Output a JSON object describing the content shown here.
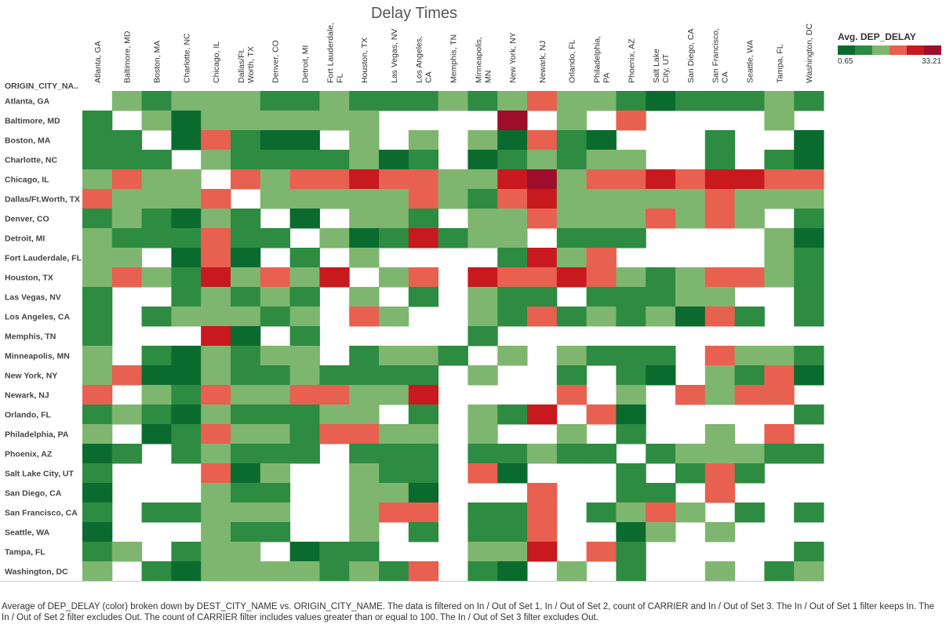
{
  "chart_data": {
    "type": "heatmap",
    "title": "Delay Times",
    "row_header": "ORIGIN_CITY_NA..",
    "legend_title": "Avg. DEP_DELAY",
    "legend_min": "0.65",
    "legend_max": "33.21",
    "color_scale": [
      "#0b6b2f",
      "#2e8b42",
      "#7fb66f",
      "#e8604f",
      "#c8191e",
      "#9e0d2a"
    ],
    "columns": [
      "Atlanta, GA",
      "Baltimore, MD",
      "Boston, MA",
      "Charlotte, NC",
      "Chicago, IL",
      "Dallas/Ft. Worth, TX",
      "Denver, CO",
      "Detroit, MI",
      "Fort Lauderdale, FL",
      "Houston, TX",
      "Las Vegas, NV",
      "Los Angeles, CA",
      "Memphis, TN",
      "Minneapolis, MN",
      "New York, NY",
      "Newark, NJ",
      "Orlando, FL",
      "Philadelphia, PA",
      "Phoenix, AZ",
      "Salt Lake City, UT",
      "San Diego, CA",
      "San Francisco, CA",
      "Seattle, WA",
      "Tampa, FL",
      "Washington, DC"
    ],
    "rows": [
      "Atlanta, GA",
      "Baltimore, MD",
      "Boston, MA",
      "Charlotte, NC",
      "Chicago, IL",
      "Dallas/Ft.Worth, TX",
      "Denver, CO",
      "Detroit, MI",
      "Fort Lauderdale, FL",
      "Houston, TX",
      "Las Vegas, NV",
      "Los Angeles, CA",
      "Memphis, TN",
      "Minneapolis, MN",
      "New York, NY",
      "Newark, NJ",
      "Orlando, FL",
      "Philadelphia, PA",
      "Phoenix, AZ",
      "Salt Lake City, UT",
      "San Diego, CA",
      "San Francisco, CA",
      "Seattle, WA",
      "Tampa, FL",
      "Washington, DC"
    ],
    "level_key": "0=no data, 1=lowest (dark green) ... 6=highest (dark red)",
    "levels": [
      [
        0,
        3,
        2,
        3,
        3,
        3,
        2,
        2,
        3,
        2,
        2,
        2,
        3,
        2,
        3,
        4,
        3,
        3,
        2,
        1,
        2,
        2,
        2,
        3,
        2
      ],
      [
        2,
        0,
        3,
        1,
        3,
        3,
        3,
        3,
        3,
        3,
        0,
        0,
        0,
        0,
        6,
        0,
        3,
        0,
        4,
        0,
        0,
        0,
        0,
        3,
        0
      ],
      [
        2,
        2,
        0,
        1,
        4,
        2,
        1,
        1,
        0,
        3,
        0,
        3,
        0,
        3,
        1,
        4,
        2,
        1,
        0,
        0,
        0,
        2,
        0,
        0,
        1
      ],
      [
        2,
        2,
        2,
        0,
        3,
        2,
        2,
        2,
        2,
        3,
        1,
        2,
        0,
        1,
        2,
        3,
        2,
        3,
        3,
        0,
        0,
        2,
        0,
        2,
        1
      ],
      [
        3,
        4,
        3,
        3,
        0,
        4,
        3,
        4,
        4,
        5,
        4,
        4,
        3,
        3,
        5,
        6,
        3,
        4,
        4,
        5,
        4,
        5,
        5,
        4,
        4
      ],
      [
        4,
        3,
        3,
        3,
        4,
        0,
        3,
        3,
        3,
        3,
        3,
        4,
        3,
        2,
        4,
        5,
        3,
        3,
        3,
        3,
        3,
        4,
        3,
        3,
        3
      ],
      [
        2,
        3,
        2,
        1,
        3,
        2,
        0,
        1,
        0,
        3,
        3,
        2,
        0,
        3,
        3,
        4,
        3,
        3,
        3,
        4,
        3,
        4,
        3,
        0,
        2
      ],
      [
        3,
        2,
        2,
        2,
        4,
        2,
        2,
        0,
        3,
        1,
        2,
        5,
        2,
        3,
        3,
        0,
        2,
        2,
        2,
        0,
        0,
        0,
        0,
        3,
        1
      ],
      [
        3,
        3,
        0,
        1,
        4,
        1,
        0,
        2,
        0,
        3,
        0,
        0,
        0,
        0,
        2,
        5,
        3,
        4,
        0,
        0,
        0,
        0,
        0,
        3,
        2
      ],
      [
        3,
        4,
        3,
        2,
        5,
        3,
        4,
        3,
        5,
        0,
        3,
        4,
        0,
        5,
        4,
        4,
        5,
        4,
        3,
        2,
        3,
        4,
        4,
        3,
        2
      ],
      [
        2,
        0,
        0,
        2,
        3,
        2,
        3,
        2,
        0,
        3,
        0,
        2,
        0,
        3,
        2,
        2,
        0,
        2,
        2,
        2,
        3,
        3,
        0,
        0,
        2
      ],
      [
        2,
        0,
        2,
        3,
        3,
        3,
        2,
        3,
        0,
        4,
        3,
        0,
        0,
        3,
        2,
        4,
        2,
        3,
        2,
        3,
        1,
        4,
        2,
        0,
        2
      ],
      [
        2,
        0,
        0,
        0,
        5,
        1,
        0,
        2,
        0,
        0,
        0,
        0,
        0,
        2,
        0,
        0,
        0,
        0,
        0,
        0,
        0,
        0,
        0,
        0,
        0
      ],
      [
        3,
        0,
        2,
        1,
        3,
        2,
        3,
        3,
        0,
        2,
        3,
        3,
        2,
        0,
        3,
        0,
        3,
        2,
        2,
        2,
        0,
        4,
        3,
        3,
        2
      ],
      [
        3,
        4,
        1,
        1,
        3,
        2,
        2,
        3,
        2,
        2,
        2,
        2,
        0,
        3,
        0,
        0,
        2,
        0,
        2,
        1,
        0,
        3,
        2,
        4,
        1
      ],
      [
        4,
        0,
        3,
        2,
        4,
        3,
        3,
        4,
        4,
        3,
        3,
        5,
        0,
        0,
        0,
        0,
        4,
        0,
        3,
        0,
        4,
        3,
        4,
        4,
        0
      ],
      [
        2,
        3,
        2,
        1,
        3,
        2,
        2,
        2,
        3,
        3,
        0,
        2,
        0,
        3,
        2,
        5,
        0,
        4,
        1,
        0,
        0,
        0,
        0,
        0,
        2
      ],
      [
        3,
        0,
        1,
        2,
        4,
        3,
        3,
        2,
        4,
        4,
        3,
        3,
        0,
        3,
        0,
        0,
        3,
        0,
        2,
        0,
        0,
        3,
        0,
        4,
        0
      ],
      [
        1,
        2,
        0,
        2,
        3,
        2,
        2,
        2,
        0,
        2,
        2,
        2,
        0,
        2,
        2,
        3,
        2,
        2,
        0,
        2,
        3,
        3,
        3,
        2,
        2
      ],
      [
        2,
        0,
        0,
        0,
        4,
        1,
        3,
        0,
        0,
        3,
        2,
        2,
        0,
        4,
        1,
        0,
        0,
        0,
        2,
        0,
        2,
        4,
        2,
        0,
        0
      ],
      [
        1,
        0,
        0,
        0,
        3,
        2,
        2,
        0,
        0,
        3,
        3,
        1,
        0,
        0,
        0,
        4,
        0,
        0,
        2,
        2,
        0,
        4,
        0,
        0,
        0
      ],
      [
        2,
        0,
        2,
        2,
        3,
        3,
        3,
        0,
        0,
        3,
        4,
        4,
        0,
        2,
        2,
        4,
        0,
        2,
        3,
        4,
        3,
        0,
        2,
        0,
        2
      ],
      [
        1,
        0,
        0,
        0,
        3,
        2,
        2,
        0,
        0,
        3,
        0,
        2,
        0,
        2,
        2,
        4,
        0,
        0,
        1,
        3,
        0,
        3,
        0,
        0,
        0
      ],
      [
        2,
        3,
        0,
        2,
        3,
        3,
        0,
        1,
        2,
        2,
        0,
        0,
        0,
        3,
        3,
        5,
        0,
        4,
        2,
        0,
        0,
        0,
        0,
        0,
        2
      ],
      [
        3,
        0,
        2,
        1,
        3,
        3,
        3,
        3,
        2,
        3,
        2,
        4,
        0,
        2,
        1,
        0,
        3,
        0,
        2,
        0,
        0,
        3,
        0,
        2,
        3
      ]
    ]
  },
  "caption": "Average of DEP_DELAY (color) broken down by DEST_CITY_NAME vs. ORIGIN_CITY_NAME. The data is filtered on In / Out of Set 1, In / Out of Set 2, count of CARRIER and In / Out of Set 3. The In / Out of Set 1 filter keeps In. The In / Out of Set 2 filter excludes Out. The count of CARRIER filter includes values greater than or equal to 100. The In / Out of Set 3 filter excludes Out."
}
